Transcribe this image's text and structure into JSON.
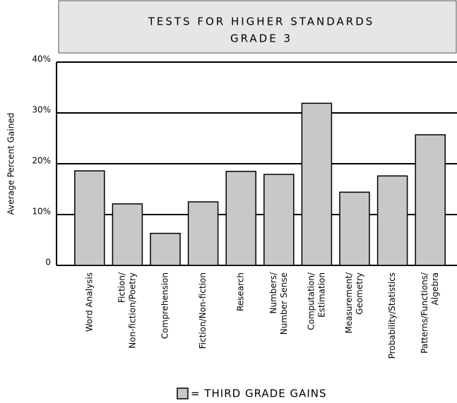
{
  "chart_data": {
    "type": "bar",
    "title": "TESTS FOR HIGHER STANDARDS",
    "subtitle": "GRADE 3",
    "y_label": "Average Percent Gained",
    "categories": [
      [
        "Word Analysis"
      ],
      [
        "Fiction/",
        "Non-fiction/Poetry"
      ],
      [
        "Comprehension"
      ],
      [
        "Fiction/Non-fiction"
      ],
      [
        "Research"
      ],
      [
        "Numbers/",
        "Number Sense"
      ],
      [
        "Computation/",
        "Estimation"
      ],
      [
        "Measurement/",
        "Geometry"
      ],
      [
        "Probability/Statistics"
      ],
      [
        "Patterns/Functions/",
        "Algebra"
      ]
    ],
    "series": [
      {
        "name": "= THIRD GRADE GAINS",
        "color": "#c8c8c8",
        "values": [
          18.6,
          12.1,
          6.3,
          12.5,
          18.5,
          17.9,
          31.9,
          14.4,
          17.6,
          25.7
        ]
      }
    ],
    "ylim": [
      0,
      40
    ],
    "yticks": [
      0,
      {
        "value": 10,
        "label": "10%"
      },
      {
        "value": 20,
        "label": "20%"
      },
      {
        "value": 30,
        "label": "30%"
      },
      {
        "value": 40,
        "label": "40%"
      }
    ],
    "grid": true
  }
}
